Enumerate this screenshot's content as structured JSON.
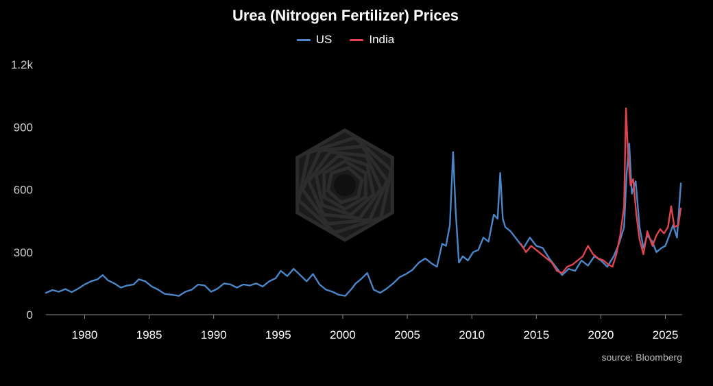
{
  "chart_data": {
    "type": "line",
    "title": "Urea (Nitrogen Fertilizer) Prices",
    "xlabel": "",
    "ylabel": "",
    "xlim": [
      1977,
      2026.3
    ],
    "ylim": [
      0,
      1200
    ],
    "x_ticks": [
      1980,
      1985,
      1990,
      1995,
      2000,
      2005,
      2010,
      2015,
      2020,
      2025
    ],
    "x_tick_labels": [
      "1980",
      "1985",
      "1990",
      "1995",
      "2000",
      "2005",
      "2010",
      "2015",
      "2020",
      "2025"
    ],
    "y_ticks": [
      0,
      300,
      600,
      900,
      1200
    ],
    "y_tick_labels": [
      "0",
      "300",
      "600",
      "900",
      "1.2k"
    ],
    "grid": false,
    "legend_position": "top-center",
    "series": [
      {
        "name": "US",
        "color": "#4a86c8",
        "x": [
          1977.0,
          1977.5,
          1978.0,
          1978.5,
          1979.0,
          1979.5,
          1980.0,
          1980.5,
          1981.0,
          1981.4,
          1981.8,
          1982.3,
          1982.8,
          1983.3,
          1983.8,
          1984.2,
          1984.7,
          1985.2,
          1985.7,
          1986.2,
          1986.8,
          1987.3,
          1987.8,
          1988.3,
          1988.8,
          1989.3,
          1989.8,
          1990.3,
          1990.8,
          1991.3,
          1991.8,
          1992.3,
          1992.8,
          1993.3,
          1993.8,
          1994.3,
          1994.8,
          1995.2,
          1995.7,
          1996.2,
          1996.7,
          1997.2,
          1997.7,
          1998.2,
          1998.7,
          1999.2,
          1999.7,
          2000.2,
          2000.7,
          2001.0,
          2001.4,
          2001.9,
          2002.4,
          2002.9,
          2003.4,
          2003.9,
          2004.4,
          2004.9,
          2005.4,
          2005.9,
          2006.4,
          2006.9,
          2007.3,
          2007.7,
          2008.0,
          2008.3,
          2008.55,
          2008.75,
          2009.0,
          2009.3,
          2009.7,
          2010.1,
          2010.5,
          2010.9,
          2011.3,
          2011.7,
          2012.0,
          2012.2,
          2012.4,
          2012.6,
          2013.0,
          2013.5,
          2014.0,
          2014.5,
          2015.0,
          2015.5,
          2016.0,
          2016.5,
          2017.0,
          2017.5,
          2018.0,
          2018.5,
          2019.0,
          2019.5,
          2020.0,
          2020.5,
          2021.0,
          2021.4,
          2021.8,
          2022.0,
          2022.2,
          2022.4,
          2022.7,
          2023.0,
          2023.3,
          2023.6,
          2024.0,
          2024.3,
          2024.7,
          2025.0,
          2025.3,
          2025.6,
          2025.9,
          2026.2
        ],
        "values": [
          105,
          118,
          110,
          123,
          108,
          125,
          145,
          160,
          170,
          190,
          165,
          150,
          130,
          140,
          145,
          170,
          160,
          135,
          120,
          100,
          95,
          90,
          110,
          120,
          145,
          140,
          110,
          125,
          150,
          145,
          130,
          145,
          140,
          150,
          135,
          160,
          175,
          210,
          185,
          220,
          190,
          160,
          195,
          145,
          120,
          110,
          95,
          90,
          125,
          150,
          170,
          200,
          120,
          105,
          125,
          150,
          180,
          195,
          215,
          250,
          270,
          245,
          230,
          340,
          330,
          430,
          780,
          500,
          250,
          280,
          260,
          300,
          310,
          370,
          350,
          480,
          460,
          680,
          460,
          420,
          400,
          360,
          320,
          370,
          330,
          320,
          270,
          230,
          190,
          220,
          210,
          260,
          235,
          280,
          260,
          230,
          280,
          340,
          420,
          680,
          820,
          580,
          640,
          420,
          320,
          380,
          350,
          300,
          320,
          330,
          380,
          430,
          370,
          630
        ]
      },
      {
        "name": "India",
        "color": "#e0444f",
        "x": [
          2013.8,
          2014.2,
          2014.6,
          2015.0,
          2015.4,
          2015.8,
          2016.2,
          2016.6,
          2017.0,
          2017.4,
          2017.8,
          2018.2,
          2018.6,
          2019.0,
          2019.4,
          2019.8,
          2020.2,
          2020.6,
          2020.9,
          2021.2,
          2021.5,
          2021.8,
          2021.95,
          2022.1,
          2022.3,
          2022.5,
          2022.75,
          2023.0,
          2023.3,
          2023.6,
          2024.0,
          2024.3,
          2024.6,
          2024.9,
          2025.2,
          2025.45,
          2025.7,
          2026.0,
          2026.2
        ],
        "values": [
          340,
          300,
          330,
          310,
          290,
          270,
          250,
          210,
          200,
          230,
          240,
          260,
          280,
          330,
          290,
          270,
          260,
          240,
          230,
          290,
          380,
          520,
          990,
          780,
          620,
          650,
          480,
          360,
          290,
          400,
          330,
          380,
          410,
          390,
          420,
          520,
          420,
          430,
          510
        ]
      }
    ],
    "annotation": "source: Bloomberg"
  }
}
